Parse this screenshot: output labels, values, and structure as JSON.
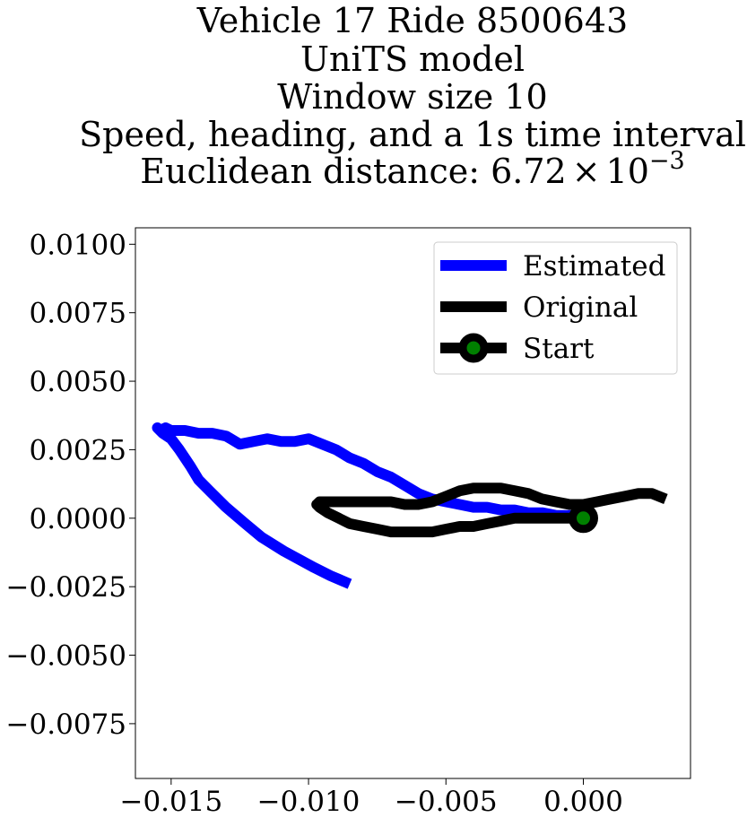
{
  "chart_data": {
    "type": "line",
    "title_lines": [
      "Vehicle 17 Ride 8500643",
      "UniTS model",
      "Window size 10",
      "Speed, heading, and a 1s time interval"
    ],
    "title_distance_prefix": "Euclidean distance: ",
    "title_distance_mantissa": "6.72",
    "title_distance_times": "×",
    "title_distance_base": "10",
    "title_distance_exponent": "−3",
    "xlabel": "",
    "ylabel": "",
    "xlim": [
      -0.0163,
      0.0039
    ],
    "ylim": [
      -0.0095,
      0.0106
    ],
    "x_ticks": [
      {
        "value": -0.015,
        "label": "−0.015"
      },
      {
        "value": -0.01,
        "label": "−0.010"
      },
      {
        "value": -0.005,
        "label": "−0.005"
      },
      {
        "value": 0.0,
        "label": "0.000"
      }
    ],
    "y_ticks": [
      {
        "value": 0.01,
        "label": "0.0100"
      },
      {
        "value": 0.0075,
        "label": "0.0075"
      },
      {
        "value": 0.005,
        "label": "0.0050"
      },
      {
        "value": 0.0025,
        "label": "0.0025"
      },
      {
        "value": 0.0,
        "label": "0.0000"
      },
      {
        "value": -0.0025,
        "label": "−0.0025"
      },
      {
        "value": -0.005,
        "label": "−0.0050"
      },
      {
        "value": -0.0075,
        "label": "−0.0075"
      }
    ],
    "grid": false,
    "legend_position": "top-right",
    "series": [
      {
        "name": "Estimated",
        "color": "#0000ff",
        "x": [
          0.0,
          -0.0005,
          -0.001,
          -0.0015,
          -0.002,
          -0.0025,
          -0.003,
          -0.0035,
          -0.004,
          -0.0045,
          -0.005,
          -0.0055,
          -0.006,
          -0.0065,
          -0.007,
          -0.0075,
          -0.008,
          -0.0085,
          -0.009,
          -0.0095,
          -0.01,
          -0.0105,
          -0.011,
          -0.0115,
          -0.012,
          -0.0125,
          -0.013,
          -0.0135,
          -0.014,
          -0.0145,
          -0.015,
          -0.0152,
          -0.0154,
          -0.0155,
          -0.0153,
          -0.015,
          -0.0147,
          -0.0143,
          -0.014,
          -0.0136,
          -0.013,
          -0.0123,
          -0.0117,
          -0.0109,
          -0.0098,
          -0.0092,
          -0.0085
        ],
        "y": [
          0.0,
          0.0001,
          0.0001,
          0.0002,
          0.0002,
          0.0003,
          0.0003,
          0.0004,
          0.0004,
          0.0005,
          0.0006,
          0.0007,
          0.0009,
          0.0012,
          0.0015,
          0.0017,
          0.002,
          0.0022,
          0.0025,
          0.0027,
          0.0029,
          0.0028,
          0.0028,
          0.0029,
          0.0028,
          0.0027,
          0.003,
          0.0031,
          0.0031,
          0.0032,
          0.0032,
          0.0033,
          0.0032,
          0.0033,
          0.0031,
          0.0029,
          0.0025,
          0.0019,
          0.0014,
          0.001,
          0.0004,
          -0.0002,
          -0.0007,
          -0.0012,
          -0.0018,
          -0.0021,
          -0.0024
        ]
      },
      {
        "name": "Original",
        "color": "#000000",
        "x": [
          0.0,
          -0.0005,
          -0.001,
          -0.0015,
          -0.002,
          -0.0025,
          -0.003,
          -0.0035,
          -0.004,
          -0.0045,
          -0.005,
          -0.0055,
          -0.006,
          -0.0065,
          -0.007,
          -0.0075,
          -0.008,
          -0.0085,
          -0.0089,
          -0.0093,
          -0.0096,
          -0.0097,
          -0.0096,
          -0.0093,
          -0.0088,
          -0.0082,
          -0.0076,
          -0.007,
          -0.0065,
          -0.006,
          -0.0055,
          -0.005,
          -0.0045,
          -0.004,
          -0.0035,
          -0.003,
          -0.0025,
          -0.002,
          -0.0015,
          -0.001,
          -0.0005,
          0.0,
          0.0005,
          0.001,
          0.0015,
          0.002,
          0.0025,
          0.003
        ],
        "y": [
          0.0,
          0.0,
          0.0,
          0.0,
          0.0,
          0.0,
          -0.0001,
          -0.0002,
          -0.0003,
          -0.0003,
          -0.0004,
          -0.0005,
          -0.0005,
          -0.0005,
          -0.0005,
          -0.0004,
          -0.0003,
          -0.0002,
          0.0,
          0.0002,
          0.0004,
          0.0005,
          0.0006,
          0.0006,
          0.0006,
          0.0006,
          0.0006,
          0.0006,
          0.0005,
          0.0005,
          0.0006,
          0.0008,
          0.001,
          0.0011,
          0.0011,
          0.0011,
          0.001,
          0.0009,
          0.0007,
          0.0006,
          0.0005,
          0.0005,
          0.0006,
          0.0007,
          0.0008,
          0.0009,
          0.0009,
          0.0007
        ]
      }
    ],
    "start_marker": {
      "name": "Start",
      "x": 0.0,
      "y": 0.0,
      "outer_color": "#000000",
      "inner_color": "#008000"
    }
  }
}
